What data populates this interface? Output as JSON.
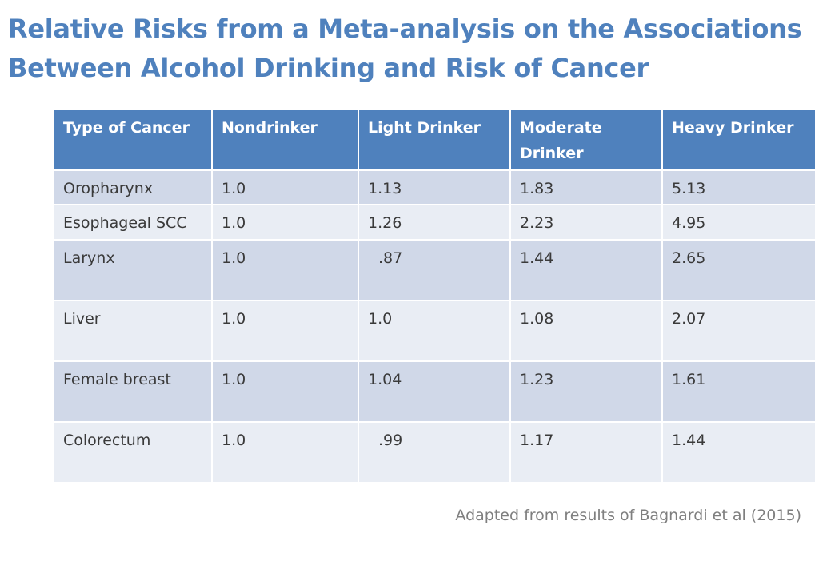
{
  "slide": {
    "title_line1": "Relative Risks from a Meta-analysis on the Associations",
    "title_line2": "Between Alcohol Drinking and Risk of Cancer",
    "source_note": "Adapted from results of Bagnardi et al (2015)"
  },
  "table": {
    "headers": [
      "Type of Cancer",
      "Nondrinker",
      "Light Drinker",
      "Moderate Drinker",
      "Heavy Drinker"
    ],
    "rows": [
      [
        "Oropharynx",
        "1.0",
        "1.13",
        "1.83",
        "5.13"
      ],
      [
        "Esophageal SCC",
        "1.0",
        "1.26",
        "2.23",
        "4.95"
      ],
      [
        "Larynx",
        "1.0",
        ".87",
        "1.44",
        "2.65"
      ],
      [
        "Liver",
        "1.0",
        "1.0",
        "1.08",
        "2.07"
      ],
      [
        "Female breast",
        "1.0",
        "1.04",
        "1.23",
        "1.61"
      ],
      [
        "Colorectum",
        "1.0",
        ".99",
        "1.17",
        "1.44"
      ]
    ]
  },
  "colors": {
    "title": "#4f81bd",
    "header_background": "#4f81bd",
    "row_dark": "#d0d8e8",
    "row_light": "#e9edf4"
  }
}
